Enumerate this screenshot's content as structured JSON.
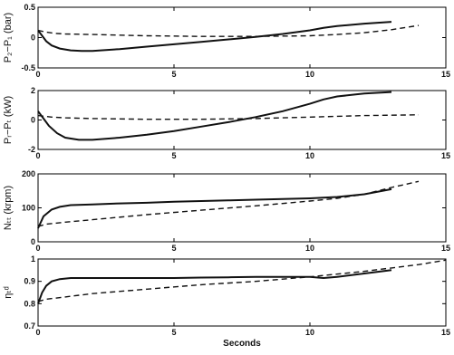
{
  "chart_data": [
    {
      "type": "line",
      "ylabel": "P₂−P₁ (bar)",
      "xlim": [
        0,
        15
      ],
      "ylim": [
        -0.5,
        0.5
      ],
      "xticks": [
        "0",
        "5",
        "10",
        "15"
      ],
      "yticks": [
        "-0.5",
        "0",
        "0.5"
      ],
      "grid": false,
      "series": [
        {
          "style": "solid",
          "x": [
            0,
            0.15,
            0.3,
            0.5,
            0.8,
            1.2,
            1.6,
            2,
            3,
            4,
            5,
            6,
            7,
            8,
            9,
            10,
            10.5,
            11,
            12,
            13
          ],
          "y": [
            0.12,
            0.03,
            -0.06,
            -0.13,
            -0.18,
            -0.21,
            -0.22,
            -0.22,
            -0.19,
            -0.15,
            -0.11,
            -0.07,
            -0.03,
            0.01,
            0.06,
            0.12,
            0.16,
            0.19,
            0.23,
            0.26
          ]
        },
        {
          "style": "dashed",
          "x": [
            0,
            0.3,
            0.6,
            1,
            2,
            4,
            6,
            8,
            10,
            11,
            12,
            13,
            14
          ],
          "y": [
            0.12,
            0.09,
            0.07,
            0.06,
            0.05,
            0.03,
            0.02,
            0.02,
            0.03,
            0.05,
            0.08,
            0.13,
            0.2
          ]
        }
      ]
    },
    {
      "type": "line",
      "ylabel": "Pᵣ−Pₜ (kW)",
      "xlim": [
        0,
        15
      ],
      "ylim": [
        -2,
        2
      ],
      "xticks": [
        "0",
        "5",
        "10",
        "15"
      ],
      "yticks": [
        "-2",
        "0",
        "2"
      ],
      "grid": false,
      "series": [
        {
          "style": "solid",
          "x": [
            0,
            0.2,
            0.4,
            0.7,
            1,
            1.5,
            2,
            3,
            4,
            5,
            6,
            7,
            8,
            9,
            10,
            10.5,
            11,
            12,
            13
          ],
          "y": [
            0.6,
            0.1,
            -0.4,
            -0.9,
            -1.2,
            -1.35,
            -1.35,
            -1.2,
            -1.0,
            -0.75,
            -0.45,
            -0.15,
            0.2,
            0.6,
            1.1,
            1.4,
            1.6,
            1.8,
            1.9
          ]
        },
        {
          "style": "dashed",
          "x": [
            0,
            0.5,
            1,
            2,
            4,
            6,
            8,
            10,
            12,
            14
          ],
          "y": [
            0.3,
            0.2,
            0.15,
            0.1,
            0.05,
            0.05,
            0.1,
            0.2,
            0.3,
            0.35
          ]
        }
      ]
    },
    {
      "type": "line",
      "ylabel": "Nₜₜ (krpm)",
      "xlim": [
        0,
        15
      ],
      "ylim": [
        0,
        200
      ],
      "xticks": [
        "0",
        "5",
        "10",
        "15"
      ],
      "yticks": [
        "0",
        "100",
        "200"
      ],
      "grid": false,
      "series": [
        {
          "style": "solid",
          "x": [
            0,
            0.2,
            0.5,
            0.8,
            1.2,
            2,
            3,
            4,
            5,
            6,
            7,
            8,
            9,
            10,
            10.5,
            11,
            12,
            13
          ],
          "y": [
            40,
            75,
            95,
            103,
            108,
            110,
            113,
            115,
            118,
            120,
            122,
            124,
            126,
            128,
            130,
            132,
            140,
            155
          ]
        },
        {
          "style": "dashed",
          "x": [
            0,
            0.3,
            1,
            2,
            4,
            6,
            8,
            10,
            11,
            12,
            13,
            14
          ],
          "y": [
            45,
            52,
            58,
            65,
            80,
            93,
            106,
            120,
            128,
            140,
            160,
            178
          ]
        }
      ]
    },
    {
      "type": "line",
      "ylabel": "ηₜᵈ",
      "xlabel": "Seconds",
      "xlim": [
        0,
        15
      ],
      "ylim": [
        0.7,
        1
      ],
      "xticks": [
        "0",
        "5",
        "10",
        "15"
      ],
      "yticks": [
        "0.7",
        "0.8",
        "0.9",
        "1"
      ],
      "grid": false,
      "series": [
        {
          "style": "solid",
          "x": [
            0,
            0.15,
            0.3,
            0.5,
            0.8,
            1.2,
            2,
            3,
            4,
            5,
            6,
            7,
            8,
            9,
            10,
            10.5,
            11,
            12,
            13
          ],
          "y": [
            0.8,
            0.85,
            0.88,
            0.9,
            0.91,
            0.915,
            0.915,
            0.915,
            0.915,
            0.915,
            0.917,
            0.918,
            0.92,
            0.92,
            0.92,
            0.915,
            0.92,
            0.935,
            0.95
          ]
        },
        {
          "style": "dashed",
          "x": [
            0,
            0.3,
            1,
            2,
            4,
            6,
            8,
            10,
            12,
            14,
            15
          ],
          "y": [
            0.81,
            0.82,
            0.83,
            0.845,
            0.865,
            0.885,
            0.9,
            0.92,
            0.945,
            0.975,
            0.995
          ]
        }
      ]
    }
  ]
}
